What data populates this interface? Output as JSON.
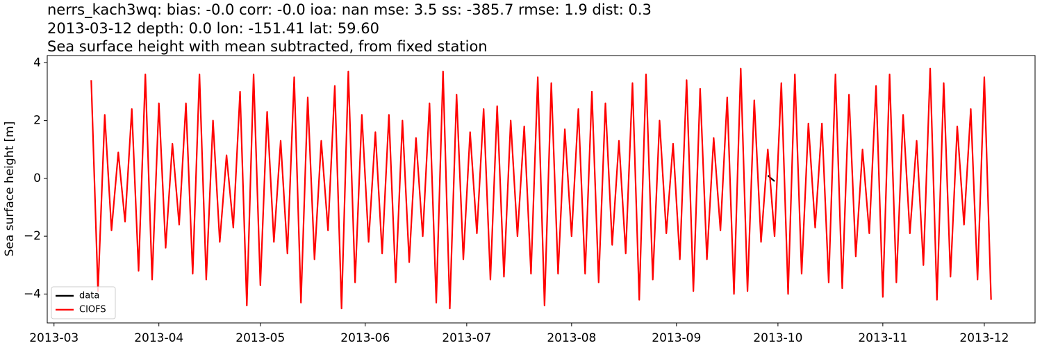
{
  "chart_data": {
    "type": "line",
    "title_lines": [
      "nerrs_kach3wq: bias: -0.0  corr: -0.0  ioa: nan  mse: 3.5  ss: -385.7  rmse: 1.9  dist: 0.3",
      "2013-03-12 depth: 0.0 lon: -151.41 lat: 59.60",
      "Sea surface height with mean subtracted, from fixed station"
    ],
    "y_label": "Sea surface height [m]",
    "xlim": [
      "2013-02-27",
      "2013-12-16"
    ],
    "xticks": [
      {
        "value": "2013-03-01",
        "label": "2013-03"
      },
      {
        "value": "2013-04-01",
        "label": "2013-04"
      },
      {
        "value": "2013-05-01",
        "label": "2013-05"
      },
      {
        "value": "2013-06-01",
        "label": "2013-06"
      },
      {
        "value": "2013-07-01",
        "label": "2013-07"
      },
      {
        "value": "2013-08-01",
        "label": "2013-08"
      },
      {
        "value": "2013-09-01",
        "label": "2013-09"
      },
      {
        "value": "2013-10-01",
        "label": "2013-10"
      },
      {
        "value": "2013-11-01",
        "label": "2013-11"
      },
      {
        "value": "2013-12-01",
        "label": "2013-12"
      }
    ],
    "ylim": [
      -5.0,
      4.25
    ],
    "yticks": [
      {
        "value": -4,
        "label": "−4"
      },
      {
        "value": -2,
        "label": "−2"
      },
      0,
      2,
      4
    ],
    "legend": "lower left",
    "series": [
      {
        "name": "data",
        "color": "#000000",
        "x": [
          "2013-09-28",
          "2013-09-30"
        ],
        "values": [
          0.1,
          -0.1
        ]
      },
      {
        "name": "CIOFS",
        "color": "#ff0000",
        "x": [
          "2013-03-12",
          "2013-03-14",
          "2013-03-16",
          "2013-03-18",
          "2013-03-20",
          "2013-03-22",
          "2013-03-24",
          "2013-03-26",
          "2013-03-28",
          "2013-03-30",
          "2013-04-01",
          "2013-04-03",
          "2013-04-05",
          "2013-04-07",
          "2013-04-09",
          "2013-04-11",
          "2013-04-13",
          "2013-04-15",
          "2013-04-17",
          "2013-04-19",
          "2013-04-21",
          "2013-04-23",
          "2013-04-25",
          "2013-04-27",
          "2013-04-29",
          "2013-05-01",
          "2013-05-03",
          "2013-05-05",
          "2013-05-07",
          "2013-05-09",
          "2013-05-11",
          "2013-05-13",
          "2013-05-15",
          "2013-05-17",
          "2013-05-19",
          "2013-05-21",
          "2013-05-23",
          "2013-05-25",
          "2013-05-27",
          "2013-05-29",
          "2013-05-31",
          "2013-06-02",
          "2013-06-04",
          "2013-06-06",
          "2013-06-08",
          "2013-06-10",
          "2013-06-12",
          "2013-06-14",
          "2013-06-16",
          "2013-06-18",
          "2013-06-20",
          "2013-06-22",
          "2013-06-24",
          "2013-06-26",
          "2013-06-28",
          "2013-06-30",
          "2013-07-02",
          "2013-07-04",
          "2013-07-06",
          "2013-07-08",
          "2013-07-10",
          "2013-07-12",
          "2013-07-14",
          "2013-07-16",
          "2013-07-18",
          "2013-07-20",
          "2013-07-22",
          "2013-07-24",
          "2013-07-26",
          "2013-07-28",
          "2013-07-30",
          "2013-08-01",
          "2013-08-03",
          "2013-08-05",
          "2013-08-07",
          "2013-08-09",
          "2013-08-11",
          "2013-08-13",
          "2013-08-15",
          "2013-08-17",
          "2013-08-19",
          "2013-08-21",
          "2013-08-23",
          "2013-08-25",
          "2013-08-27",
          "2013-08-29",
          "2013-08-31",
          "2013-09-02",
          "2013-09-04",
          "2013-09-06",
          "2013-09-08",
          "2013-09-10",
          "2013-09-12",
          "2013-09-14",
          "2013-09-16",
          "2013-09-18",
          "2013-09-20",
          "2013-09-22",
          "2013-09-24",
          "2013-09-26",
          "2013-09-28",
          "2013-09-30",
          "2013-10-02",
          "2013-10-04",
          "2013-10-06",
          "2013-10-08",
          "2013-10-10",
          "2013-10-12",
          "2013-10-14",
          "2013-10-16",
          "2013-10-18",
          "2013-10-20",
          "2013-10-22",
          "2013-10-24",
          "2013-10-26",
          "2013-10-28",
          "2013-10-30",
          "2013-11-01",
          "2013-11-03",
          "2013-11-05",
          "2013-11-07",
          "2013-11-09",
          "2013-11-11",
          "2013-11-13",
          "2013-11-15",
          "2013-11-17",
          "2013-11-19",
          "2013-11-21",
          "2013-11-23",
          "2013-11-25",
          "2013-11-27",
          "2013-11-29",
          "2013-12-01",
          "2013-12-03"
        ],
        "values": [
          3.4,
          -3.9,
          2.2,
          -1.8,
          0.9,
          -1.5,
          2.4,
          -3.2,
          3.6,
          -3.5,
          2.6,
          -2.4,
          1.2,
          -1.6,
          2.6,
          -3.3,
          3.6,
          -3.5,
          2.0,
          -2.2,
          0.8,
          -1.7,
          3.0,
          -4.4,
          3.6,
          -3.7,
          2.3,
          -2.2,
          1.3,
          -2.6,
          3.5,
          -4.3,
          2.8,
          -2.8,
          1.3,
          -1.8,
          3.2,
          -4.5,
          3.7,
          -3.6,
          2.2,
          -2.2,
          1.6,
          -2.6,
          2.2,
          -3.6,
          2.0,
          -2.9,
          1.4,
          -2.0,
          2.6,
          -4.3,
          3.7,
          -4.5,
          2.9,
          -2.8,
          1.6,
          -1.9,
          2.4,
          -3.5,
          2.5,
          -3.4,
          2.0,
          -2.0,
          1.8,
          -3.3,
          3.5,
          -4.4,
          3.3,
          -3.3,
          1.7,
          -2.0,
          2.4,
          -3.3,
          3.0,
          -3.6,
          2.6,
          -2.3,
          1.3,
          -2.6,
          3.3,
          -4.2,
          3.6,
          -3.5,
          2.0,
          -1.9,
          1.2,
          -2.8,
          3.4,
          -3.9,
          3.1,
          -2.8,
          1.4,
          -1.8,
          2.8,
          -4.0,
          3.8,
          -3.9,
          2.7,
          -2.2,
          1.0,
          -2.0,
          3.3,
          -4.0,
          3.6,
          -3.3,
          1.9,
          -1.7,
          1.9,
          -3.6,
          3.6,
          -3.8,
          2.9,
          -2.7,
          1.0,
          -1.9,
          3.2,
          -4.1,
          3.6,
          -3.6,
          2.2,
          -1.9,
          1.3,
          -3.0,
          3.8,
          -4.2,
          3.3,
          -3.4,
          1.8,
          -1.6,
          2.4,
          -3.5,
          3.5,
          -4.2
        ]
      }
    ]
  }
}
